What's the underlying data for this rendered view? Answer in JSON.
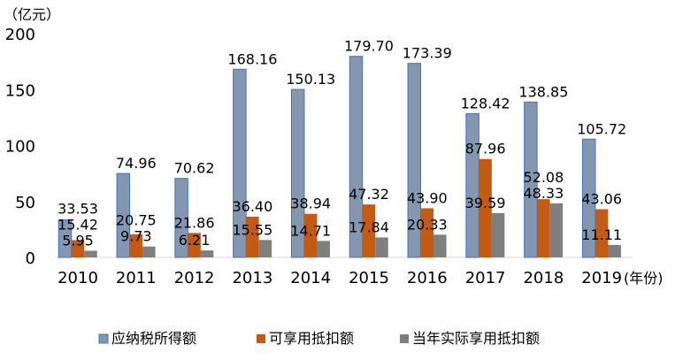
{
  "chart_data": {
    "type": "bar",
    "y_unit_label": "（亿元）",
    "x_unit_label": "(年份)",
    "categories": [
      "2010",
      "2011",
      "2012",
      "2013",
      "2014",
      "2015",
      "2016",
      "2017",
      "2018",
      "2019"
    ],
    "ylim": [
      0,
      200
    ],
    "yticks": [
      "0",
      "50",
      "100",
      "150",
      "200"
    ],
    "grid": false,
    "legend_position": "bottom",
    "series": [
      {
        "name": "应纳税所得额",
        "color": "#8497b0",
        "border": "#4472c4",
        "values": [
          33.53,
          74.96,
          70.62,
          168.16,
          150.13,
          179.7,
          173.39,
          128.42,
          138.85,
          105.72
        ],
        "labels": [
          "33.53",
          "74.96",
          "70.62",
          "168.16",
          "150.13",
          "179.70",
          "173.39",
          "128.42",
          "138.85",
          "105.72"
        ]
      },
      {
        "name": "可享用抵扣额",
        "color": "#c55a11",
        "values": [
          15.42,
          20.75,
          21.86,
          36.4,
          38.94,
          47.32,
          43.9,
          87.96,
          52.08,
          43.06
        ],
        "labels": [
          "15.42",
          "20.75",
          "21.86",
          "36.40",
          "38.94",
          "47.32",
          "43.90",
          "87.96",
          "52.08",
          "43.06"
        ]
      },
      {
        "name": "当年实际享用抵扣额",
        "color": "#7f7f7f",
        "values": [
          5.95,
          9.73,
          6.21,
          15.55,
          14.71,
          17.84,
          20.33,
          39.59,
          48.33,
          11.11
        ],
        "labels": [
          "5.95",
          "9.73",
          "6.21",
          "15.55",
          "14.71",
          "17.84",
          "20.33",
          "39.59",
          "48.33",
          "11.11"
        ]
      }
    ]
  }
}
